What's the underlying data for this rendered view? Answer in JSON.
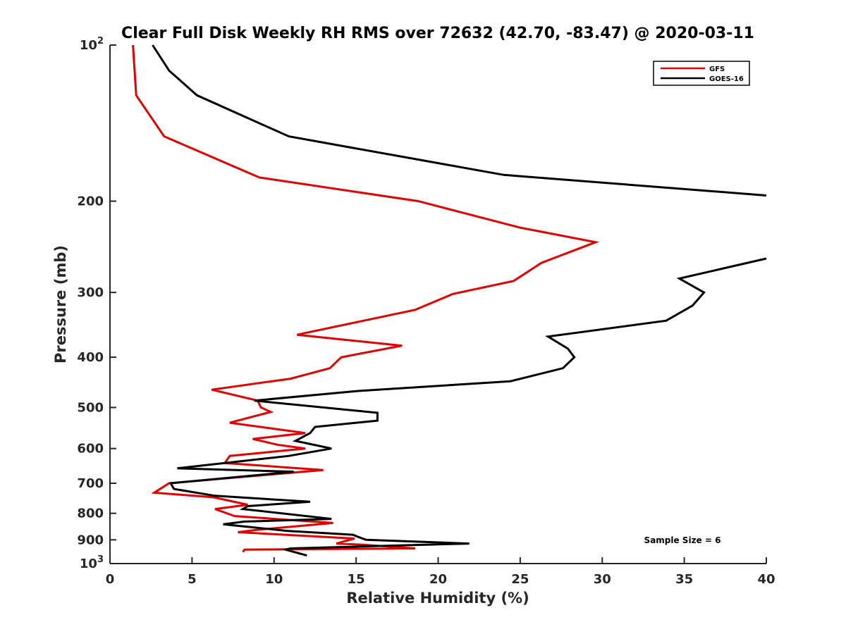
{
  "chart_data": {
    "type": "line",
    "title": "Clear Full Disk Weekly RH RMS over 72632 (42.70, -83.47) @ 2020-03-11",
    "xlabel": "Relative Humidity (%)",
    "ylabel": "Pressure (mb)",
    "xlim": [
      0,
      40
    ],
    "ylim": [
      100,
      1000
    ],
    "y_scale": "log",
    "y_reversed": true,
    "grid": false,
    "legend_position": "top-right",
    "xticks": [
      "0",
      "5",
      "10",
      "15",
      "20",
      "25",
      "30",
      "35",
      "40"
    ],
    "yticks": [
      {
        "value": 100,
        "base": "10",
        "exp": "2"
      },
      {
        "value": 200,
        "label": "200"
      },
      {
        "value": 300,
        "label": "300"
      },
      {
        "value": 400,
        "label": "400"
      },
      {
        "value": 500,
        "label": "500"
      },
      {
        "value": 600,
        "label": "600"
      },
      {
        "value": 700,
        "label": "700"
      },
      {
        "value": 800,
        "label": "800"
      },
      {
        "value": 900,
        "label": "900"
      },
      {
        "value": 1000,
        "base": "10",
        "exp": "3"
      }
    ],
    "annotation": "Sample Size = 6",
    "series": [
      {
        "name": "GFS",
        "color": "#e00000",
        "points": [
          [
            1.4,
            100
          ],
          [
            1.6,
            125
          ],
          [
            3.3,
            150
          ],
          [
            9.1,
            180
          ],
          [
            18.8,
            200
          ],
          [
            25.0,
            225
          ],
          [
            29.6,
            240
          ],
          [
            26.3,
            263
          ],
          [
            24.6,
            285
          ],
          [
            20.9,
            302
          ],
          [
            18.6,
            324
          ],
          [
            15.1,
            342
          ],
          [
            11.4,
            362
          ],
          [
            17.8,
            380
          ],
          [
            14.1,
            400
          ],
          [
            13.4,
            420
          ],
          [
            11.0,
            440
          ],
          [
            6.2,
            462
          ],
          [
            9.0,
            485
          ],
          [
            9.2,
            500
          ],
          [
            9.8,
            510
          ],
          [
            7.3,
            535
          ],
          [
            11.9,
            560
          ],
          [
            8.7,
            575
          ],
          [
            10.2,
            590
          ],
          [
            11.9,
            600
          ],
          [
            7.3,
            620
          ],
          [
            7.0,
            640
          ],
          [
            13.0,
            660
          ],
          [
            3.6,
            700
          ],
          [
            2.7,
            730
          ],
          [
            6.3,
            745
          ],
          [
            8.4,
            770
          ],
          [
            6.4,
            785
          ],
          [
            7.6,
            810
          ],
          [
            13.6,
            835
          ],
          [
            9.1,
            860
          ],
          [
            7.8,
            870
          ],
          [
            14.9,
            895
          ],
          [
            13.8,
            915
          ],
          [
            15.4,
            920
          ],
          [
            18.6,
            935
          ],
          [
            8.2,
            940
          ],
          [
            8.1,
            950
          ]
        ]
      },
      {
        "name": "GOES-16",
        "color": "#000000",
        "points": [
          [
            2.6,
            100
          ],
          [
            3.6,
            112
          ],
          [
            5.3,
            125
          ],
          [
            10.9,
            150
          ],
          [
            24.0,
            178
          ],
          [
            40.0,
            195
          ],
          [
            null,
            250
          ],
          [
            40.0,
            258
          ],
          [
            34.7,
            282
          ],
          [
            36.2,
            300
          ],
          [
            35.5,
            318
          ],
          [
            33.9,
            340
          ],
          [
            26.7,
            365
          ],
          [
            27.9,
            385
          ],
          [
            28.3,
            400
          ],
          [
            27.6,
            420
          ],
          [
            24.4,
            445
          ],
          [
            15.0,
            465
          ],
          [
            8.8,
            485
          ],
          [
            16.3,
            512
          ],
          [
            16.3,
            530
          ],
          [
            12.5,
            545
          ],
          [
            12.2,
            560
          ],
          [
            11.3,
            580
          ],
          [
            13.5,
            600
          ],
          [
            10.9,
            620
          ],
          [
            4.1,
            655
          ],
          [
            11.2,
            665
          ],
          [
            3.7,
            700
          ],
          [
            3.9,
            718
          ],
          [
            6.4,
            740
          ],
          [
            12.2,
            760
          ],
          [
            8.4,
            775
          ],
          [
            8.1,
            785
          ],
          [
            13.5,
            820
          ],
          [
            8.2,
            830
          ],
          [
            6.9,
            840
          ],
          [
            10.8,
            865
          ],
          [
            14.8,
            880
          ],
          [
            15.2,
            890
          ],
          [
            15.6,
            900
          ],
          [
            21.9,
            915
          ],
          [
            11.0,
            935
          ],
          [
            10.7,
            940
          ],
          [
            12.0,
            965
          ]
        ]
      }
    ]
  }
}
